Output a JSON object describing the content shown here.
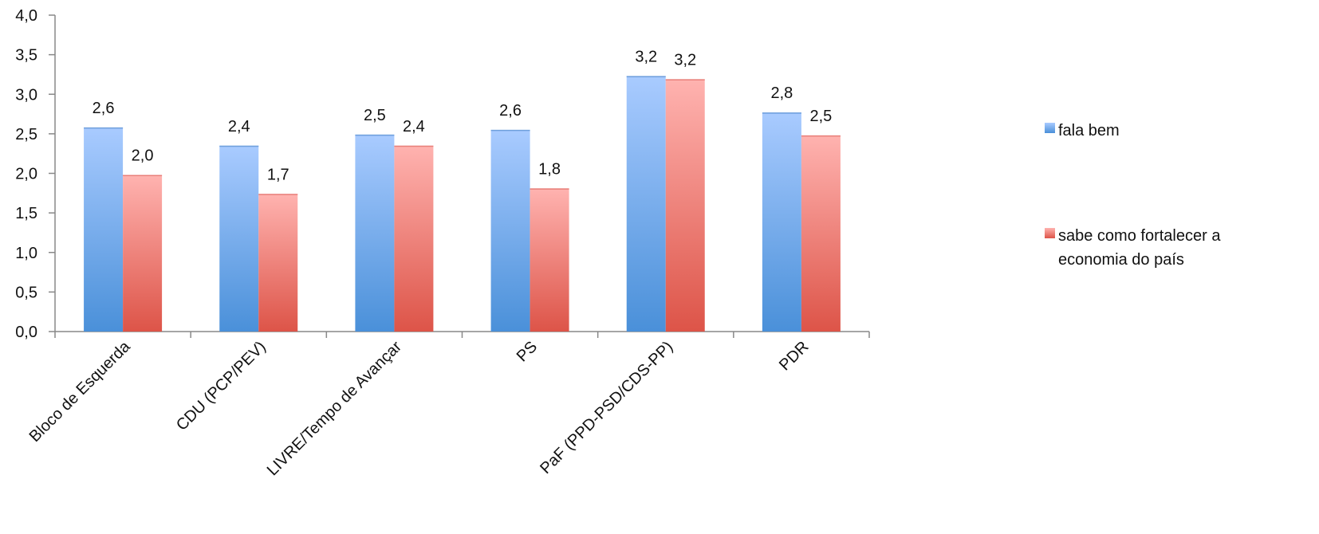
{
  "chart_data": {
    "type": "bar",
    "categories": [
      "Bloco de Esquerda",
      "CDU (PCP/PEV)",
      "LIVRE/Tempo de Avançar",
      "PS",
      "PaF (PPD-PSD/CDS-PP)",
      "PDR"
    ],
    "series": [
      {
        "name": "fala bem",
        "values": [
          2.58,
          2.35,
          2.49,
          2.55,
          3.23,
          2.77
        ],
        "labels": [
          "2,6",
          "2,4",
          "2,5",
          "2,6",
          "3,2",
          "2,8"
        ],
        "color_top": "#a9cbff",
        "color_bottom": "#4a90d9"
      },
      {
        "name": "sabe como fortalecer a economia do país",
        "legend_lines": [
          "sabe como fortalecer a",
          "economia do país"
        ],
        "values": [
          1.98,
          1.74,
          2.35,
          1.81,
          3.19,
          2.48
        ],
        "labels": [
          "2,0",
          "1,7",
          "2,4",
          "1,8",
          "3,2",
          "2,5"
        ],
        "color_top": "#ffb3b0",
        "color_bottom": "#dd5448"
      }
    ],
    "ylim": [
      0,
      4
    ],
    "yticks": [
      "0,0",
      "0,5",
      "1,0",
      "1,5",
      "2,0",
      "2,5",
      "3,0",
      "3,5",
      "4,0"
    ],
    "grid": false,
    "legend_position": "right"
  }
}
